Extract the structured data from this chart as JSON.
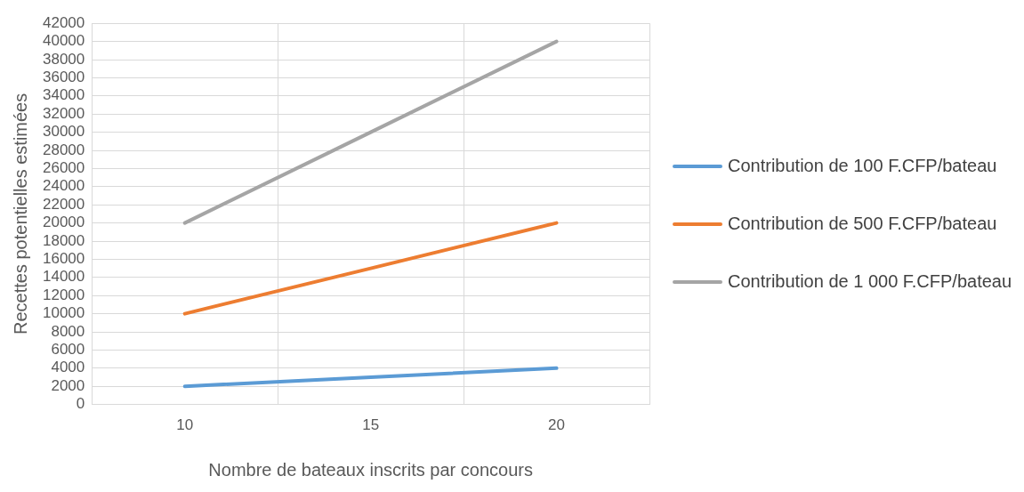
{
  "chart_data": {
    "type": "line",
    "xlabel": "Nombre de bateaux inscrits par concours",
    "ylabel": "Recettes potentielles estimées",
    "categories": [
      "10",
      "15",
      "20"
    ],
    "series": [
      {
        "name": "Contribution de 100 F.CFP/bateau",
        "color": "#5b9bd5",
        "values": [
          2000,
          3000,
          4000
        ]
      },
      {
        "name": "Contribution de 500 F.CFP/bateau",
        "color": "#ed7d31",
        "values": [
          10000,
          15000,
          20000
        ]
      },
      {
        "name": "Contribution de 1 000 F.CFP/bateau",
        "color": "#a5a5a5",
        "values": [
          20000,
          30000,
          40000
        ]
      }
    ],
    "ylim": [
      0,
      42000
    ],
    "yticks": [
      0,
      2000,
      4000,
      6000,
      8000,
      10000,
      12000,
      14000,
      16000,
      18000,
      20000,
      22000,
      24000,
      26000,
      28000,
      30000,
      32000,
      34000,
      36000,
      38000,
      40000,
      42000
    ],
    "grid": true,
    "legend": "right",
    "marker": "none",
    "line_style": "solid"
  }
}
